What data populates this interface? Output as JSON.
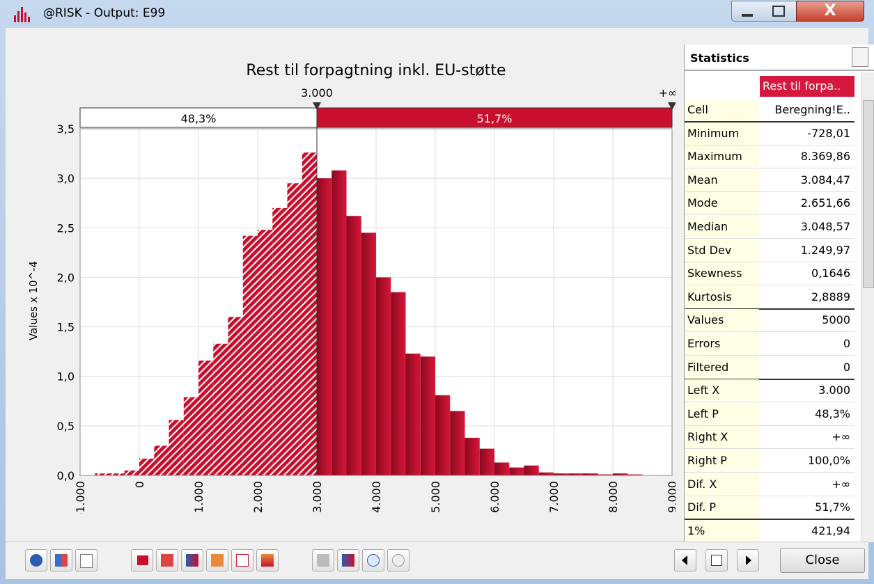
{
  "window": {
    "title": "@RISK - Output: E99"
  },
  "chart_data": {
    "type": "histogram",
    "title": "Rest til forpagtning inkl. EU-støtte",
    "ylabel": "Values x 10^-4",
    "bins": [
      -750,
      -500,
      -250,
      0,
      250,
      500,
      750,
      1000,
      1250,
      1500,
      1750,
      2000,
      2250,
      2500,
      2750,
      3000,
      3250,
      3500,
      3750,
      4000,
      4250,
      4500,
      4750,
      5000,
      5250,
      5500,
      5750,
      6000,
      6250,
      6500,
      6750,
      7000,
      7250,
      7500,
      7750,
      8000,
      8250,
      8500
    ],
    "values": [
      0.02,
      0.02,
      0.05,
      0.17,
      0.3,
      0.56,
      0.79,
      1.16,
      1.33,
      1.6,
      2.42,
      2.48,
      2.7,
      2.95,
      3.26,
      3.0,
      3.08,
      2.62,
      2.45,
      2.0,
      1.85,
      1.23,
      1.2,
      0.81,
      0.65,
      0.38,
      0.27,
      0.13,
      0.08,
      0.1,
      0.03,
      0.02,
      0.02,
      0.02,
      0.01,
      0.02,
      0.01
    ],
    "color": "#c8102e",
    "xlim": [
      -1000,
      9000
    ],
    "xticks": [
      {
        "value": -1000,
        "label": "-1.000"
      },
      0,
      {
        "value": 1000,
        "label": "1.000"
      },
      {
        "value": 2000,
        "label": "2.000"
      },
      {
        "value": 3000,
        "label": "3.000"
      },
      {
        "value": 4000,
        "label": "4.000"
      },
      {
        "value": 5000,
        "label": "5.000"
      },
      {
        "value": 6000,
        "label": "6.000"
      },
      {
        "value": 7000,
        "label": "7.000"
      },
      {
        "value": 8000,
        "label": "8.000"
      },
      {
        "value": 9000,
        "label": "9.000"
      }
    ],
    "ylim": [
      0,
      3.5
    ],
    "yticks": [
      {
        "value": 0,
        "label": "0,0"
      },
      {
        "value": 0.5,
        "label": "0,5"
      },
      {
        "value": 1,
        "label": "1,0"
      },
      {
        "value": 1.5,
        "label": "1,5"
      },
      {
        "value": 2,
        "label": "2,0"
      },
      {
        "value": 2.5,
        "label": "2,5"
      },
      {
        "value": 3,
        "label": "3,0"
      },
      {
        "value": 3.5,
        "label": "3,5"
      }
    ],
    "grid": true,
    "delimiter": {
      "value": 3000,
      "label": "3.000"
    },
    "right_delimiter_label": "+∞",
    "region_labels": [
      "48,3%",
      "51,7%"
    ]
  },
  "table": {
    "header": "Statistics",
    "column": "Rest til forpa..",
    "rows": [
      [
        "Cell",
        "Beregning!E.."
      ],
      [
        "Minimum",
        "-728,01"
      ],
      [
        "Maximum",
        "8.369,86"
      ],
      [
        "Mean",
        "3.084,47"
      ],
      [
        "Mode",
        "2.651,66"
      ],
      [
        "Median",
        "3.048,57"
      ],
      [
        "Std Dev",
        "1.249,97"
      ],
      [
        "Skewness",
        "0,1646"
      ],
      [
        "Kurtosis",
        "2,8889"
      ],
      [
        "Values",
        "5000"
      ],
      [
        "Errors",
        "0"
      ],
      [
        "Filtered",
        "0"
      ],
      [
        "Left X",
        "3.000"
      ],
      [
        "Left P",
        "48,3%"
      ],
      [
        "Right X",
        "+∞"
      ],
      [
        "Right P",
        "100,0%"
      ],
      [
        "Dif. X",
        "+∞"
      ],
      [
        "Dif. P",
        "51,7%"
      ],
      [
        "1%",
        "421,94"
      ]
    ]
  },
  "toolbar": {
    "close": "Close"
  }
}
